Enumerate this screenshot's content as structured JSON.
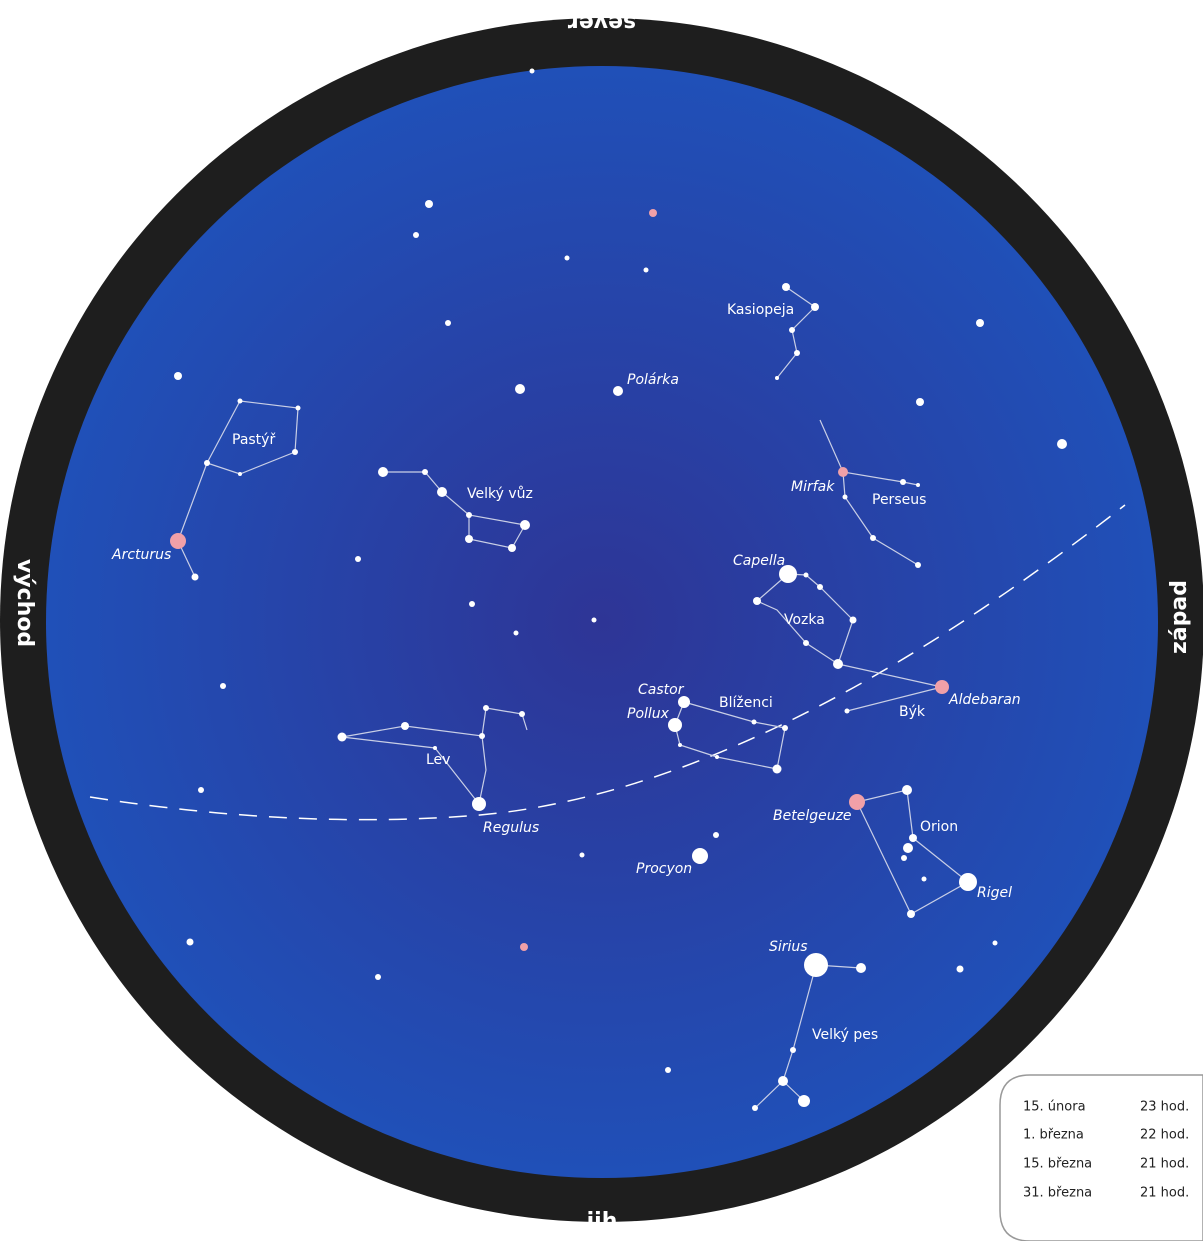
{
  "compass": {
    "north": "sever",
    "south": "jih",
    "east": "východ",
    "west": "západ"
  },
  "constellations": [
    "Kasiopeja",
    "Pastýř",
    "Velký vůz",
    "Perseus",
    "Vozka",
    "Blíženci",
    "Býk",
    "Lev",
    "Orion",
    "Velký pes"
  ],
  "stars": [
    "Polárka",
    "Arcturus",
    "Mirfak",
    "Capella",
    "Castor",
    "Pollux",
    "Aldebaran",
    "Betelgeuze",
    "Regulus",
    "Procyon",
    "Rigel",
    "Sirius"
  ],
  "table": {
    "rows": [
      [
        "15. února",
        "23 hod."
      ],
      [
        "1. března",
        "22 hod."
      ],
      [
        "15. března",
        "21 hod."
      ],
      [
        "31. března",
        "21 hod."
      ]
    ]
  }
}
